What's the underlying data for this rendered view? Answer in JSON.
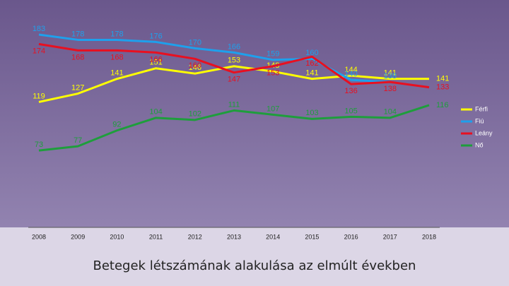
{
  "chart_data": {
    "type": "line",
    "title": "Betegek létszámának alakulása az elmúlt években",
    "categories": [
      "2008",
      "2009",
      "2010",
      "2011",
      "2012",
      "2013",
      "2014",
      "2015",
      "2016",
      "2017",
      "2018"
    ],
    "series": [
      {
        "name": "Férfi",
        "color": "#ffff00",
        "values": [
          119,
          127,
          141,
          151,
          146,
          153,
          148,
          141,
          144,
          141,
          141
        ]
      },
      {
        "name": "Fiú",
        "color": "#1ea0ec",
        "values": [
          183,
          178,
          178,
          176,
          170,
          166,
          159,
          160,
          140,
          138,
          null
        ]
      },
      {
        "name": "Leány",
        "color": "#e81020",
        "values": [
          174,
          168,
          168,
          166,
          160,
          147,
          153,
          162,
          136,
          138,
          133
        ]
      },
      {
        "name": "Nő",
        "color": "#1e9e3c",
        "values": [
          73,
          77,
          92,
          104,
          102,
          111,
          107,
          103,
          105,
          104,
          116
        ]
      }
    ],
    "ylim": [
      0,
      185
    ]
  }
}
